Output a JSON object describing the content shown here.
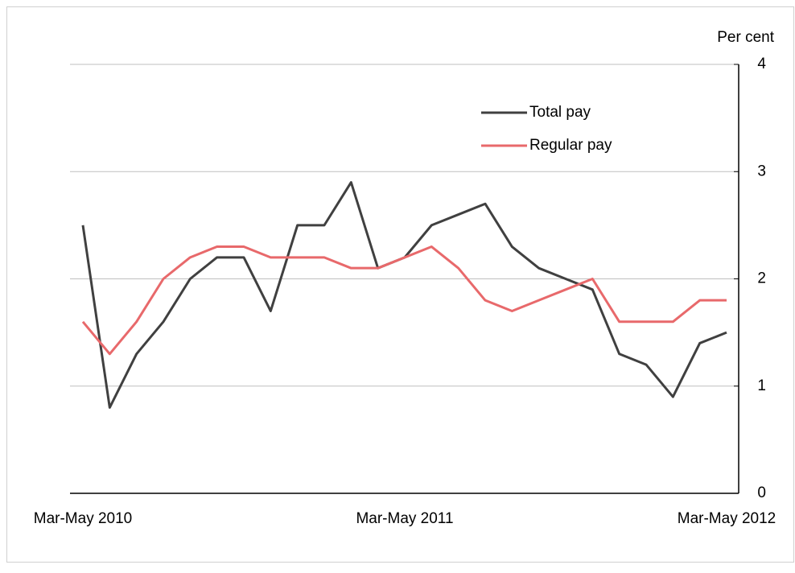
{
  "chart_data": {
    "type": "line",
    "y_label": "Per cent",
    "categories": [
      "Mar-May 2010",
      null,
      null,
      null,
      null,
      null,
      null,
      null,
      null,
      null,
      null,
      null,
      "Mar-May 2011",
      null,
      null,
      null,
      null,
      null,
      null,
      null,
      null,
      null,
      null,
      null,
      "Mar-May 2012"
    ],
    "series": [
      {
        "name": "Total pay",
        "color": "#404040",
        "values": [
          2.5,
          0.8,
          1.3,
          1.6,
          2.0,
          2.2,
          2.2,
          1.7,
          2.5,
          2.5,
          2.9,
          2.1,
          2.2,
          2.5,
          2.6,
          2.7,
          2.3,
          2.1,
          2.0,
          1.9,
          1.3,
          1.2,
          0.9,
          1.4,
          1.5
        ]
      },
      {
        "name": "Regular pay",
        "color": "#e8696b",
        "values": [
          1.6,
          1.3,
          1.6,
          2.0,
          2.2,
          2.3,
          2.3,
          2.2,
          2.2,
          2.2,
          2.1,
          2.1,
          2.2,
          2.3,
          2.1,
          1.8,
          1.7,
          1.8,
          1.9,
          2.0,
          1.6,
          1.6,
          1.6,
          1.8,
          1.8
        ]
      }
    ],
    "ylim": [
      0,
      4
    ],
    "yticks": [
      0,
      1,
      2,
      3,
      4
    ],
    "grid": true,
    "legend": "top"
  }
}
